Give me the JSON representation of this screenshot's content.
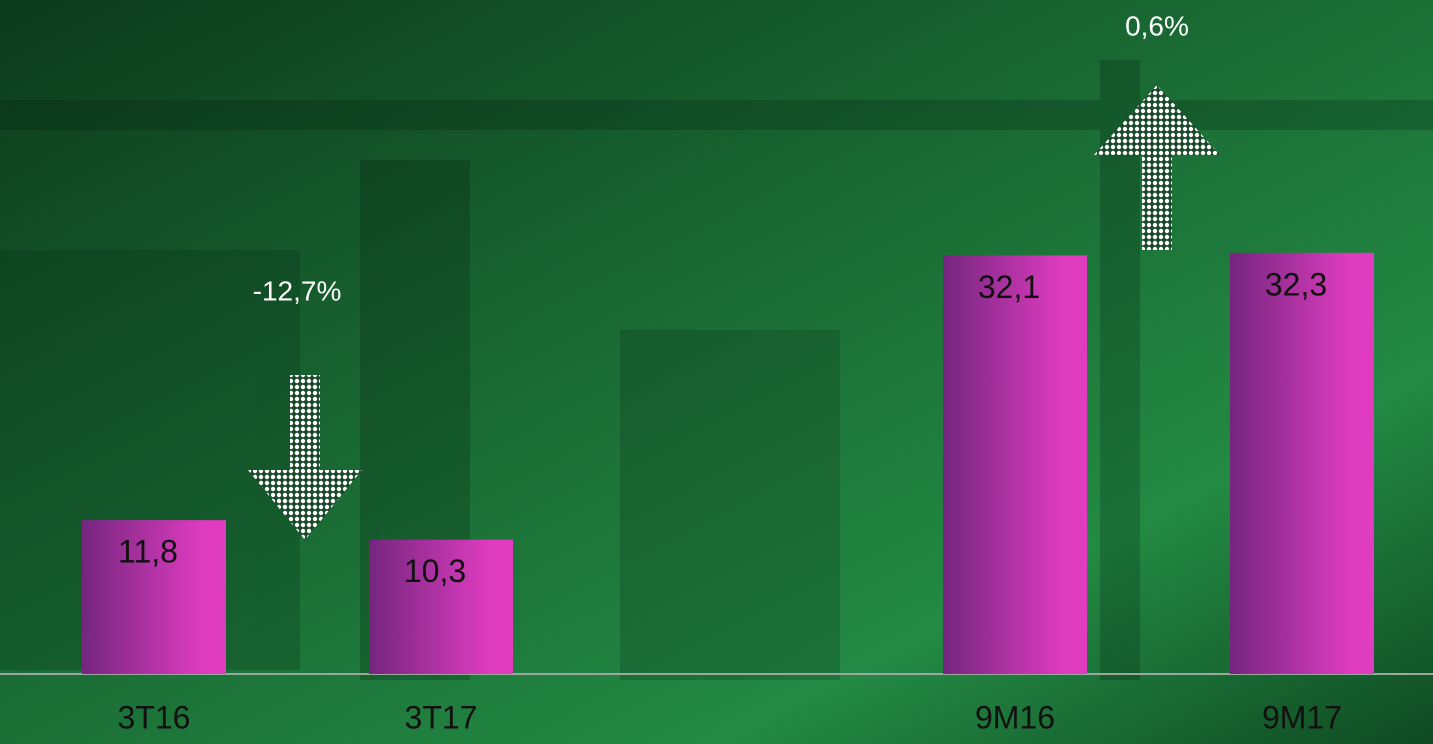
{
  "chart_data": {
    "type": "bar",
    "categories": [
      "3T16",
      "3T17",
      null,
      "9M16",
      "9M17"
    ],
    "values": [
      11.8,
      10.3,
      null,
      32.1,
      32.3
    ],
    "value_labels": [
      "11,8",
      "10,3",
      null,
      "32,1",
      "32,3"
    ],
    "annotations": [
      "-12,7%",
      "0,6%"
    ],
    "color": [
      "#74267f",
      "#e03cc0"
    ]
  }
}
